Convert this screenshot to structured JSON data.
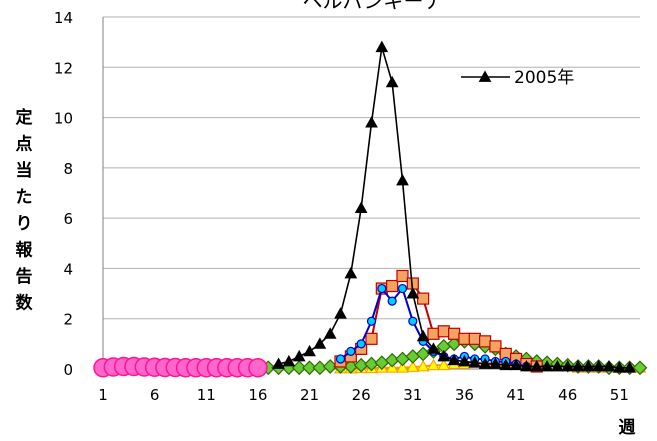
{
  "chart_data": {
    "type": "line",
    "title": "ヘルパンギーナ",
    "ylabel": "定点当たり報告数",
    "xlabel": "週",
    "ylim": [
      0,
      14
    ],
    "yticks": [
      "0",
      "2",
      "4",
      "6",
      "8",
      "10",
      "12",
      "14"
    ],
    "xticks": [
      "1",
      "6",
      "11",
      "16",
      "21",
      "26",
      "31",
      "36",
      "41",
      "46",
      "51"
    ],
    "xlim": [
      1,
      53
    ],
    "grid": true,
    "legend_position": "top-right",
    "series": [
      {
        "name": "",
        "color": "#ff1493",
        "fill": "#ff66cc",
        "marker": "circle-large",
        "x": [
          1,
          2,
          3,
          4,
          5,
          6,
          7,
          8,
          9,
          10,
          11,
          12,
          13,
          14,
          15,
          16
        ],
        "values": [
          0.05,
          0.08,
          0.1,
          0.1,
          0.08,
          0.07,
          0.06,
          0.06,
          0.05,
          0.05,
          0.05,
          0.05,
          0.05,
          0.05,
          0.05,
          0.05
        ]
      },
      {
        "name": "2005年",
        "color": "#000000",
        "fill": "#000000",
        "marker": "triangle",
        "x": [
          18,
          19,
          20,
          21,
          22,
          23,
          24,
          25,
          26,
          27,
          28,
          29,
          30,
          31,
          32,
          33,
          34,
          35,
          36,
          37,
          38,
          39,
          40,
          41,
          42,
          43,
          44,
          45,
          46,
          47,
          48,
          49,
          50,
          51,
          52
        ],
        "values": [
          0.2,
          0.3,
          0.5,
          0.7,
          1.0,
          1.4,
          2.2,
          3.8,
          6.4,
          9.8,
          12.8,
          11.4,
          7.5,
          3.0,
          1.3,
          0.8,
          0.5,
          0.35,
          0.3,
          0.25,
          0.2,
          0.2,
          0.15,
          0.15,
          0.1,
          0.1,
          0.1,
          0.1,
          0.1,
          0.1,
          0.1,
          0.1,
          0.1,
          0.05,
          0.05
        ]
      },
      {
        "name": "",
        "color": "#c00000",
        "fill": "#f4a460",
        "marker": "square",
        "x": [
          24,
          25,
          26,
          27,
          28,
          29,
          30,
          31,
          32,
          33,
          34,
          35,
          36,
          37,
          38,
          39,
          40,
          41,
          42,
          43
        ],
        "values": [
          0.3,
          0.5,
          0.8,
          1.2,
          3.2,
          3.3,
          3.7,
          3.4,
          2.8,
          1.4,
          1.5,
          1.4,
          1.2,
          1.2,
          1.1,
          0.9,
          0.6,
          0.4,
          0.2,
          0.1
        ]
      },
      {
        "name": "",
        "color": "#0000cc",
        "fill": "#00ccff",
        "marker": "circle-small",
        "x": [
          24,
          25,
          26,
          27,
          28,
          29,
          30,
          31,
          32,
          33,
          34,
          35,
          36,
          37,
          38,
          39,
          40,
          41,
          42
        ],
        "values": [
          0.4,
          0.7,
          1.0,
          1.9,
          3.2,
          2.7,
          3.2,
          1.9,
          1.1,
          0.7,
          0.5,
          0.4,
          0.5,
          0.4,
          0.4,
          0.3,
          0.3,
          0.2,
          0.1
        ]
      },
      {
        "name": "",
        "color": "#336600",
        "fill": "#66cc33",
        "marker": "diamond",
        "x": [
          17,
          18,
          19,
          20,
          21,
          22,
          23,
          24,
          25,
          26,
          27,
          28,
          29,
          30,
          31,
          32,
          33,
          34,
          35,
          36,
          37,
          38,
          39,
          40,
          41,
          42,
          43,
          44,
          45,
          46,
          47,
          48,
          49,
          50,
          51,
          52,
          53
        ],
        "values": [
          0.05,
          0.05,
          0.05,
          0.05,
          0.05,
          0.05,
          0.1,
          0.1,
          0.1,
          0.15,
          0.2,
          0.25,
          0.35,
          0.4,
          0.5,
          0.6,
          0.7,
          0.9,
          1.0,
          1.1,
          1.0,
          0.9,
          0.8,
          0.6,
          0.5,
          0.4,
          0.3,
          0.25,
          0.2,
          0.15,
          0.1,
          0.1,
          0.1,
          0.05,
          0.05,
          0.05,
          0.05
        ]
      },
      {
        "name": "",
        "color": "#ff9900",
        "fill": "#ffff00",
        "marker": "triangle",
        "x": [
          24,
          25,
          26,
          27,
          28,
          29,
          30,
          31,
          32,
          33,
          34,
          35,
          36,
          37,
          38,
          39,
          40,
          41,
          42,
          43,
          44,
          45,
          46,
          47,
          48,
          49,
          50,
          51,
          52,
          53
        ],
        "values": [
          0.02,
          0.02,
          0.03,
          0.03,
          0.05,
          0.05,
          0.05,
          0.08,
          0.1,
          0.15,
          0.15,
          0.2,
          0.2,
          0.25,
          0.25,
          0.25,
          0.25,
          0.2,
          0.2,
          0.15,
          0.1,
          0.1,
          0.1,
          0.05,
          0.05,
          0.05,
          0.05,
          0.05,
          0.05,
          0.05
        ]
      }
    ]
  }
}
